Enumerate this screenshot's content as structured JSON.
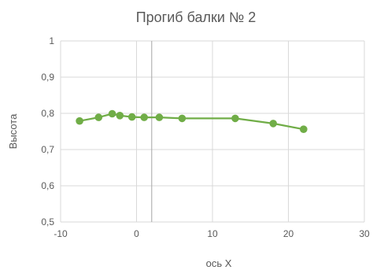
{
  "chart_data": {
    "type": "scatter",
    "title": "Прогиб балки № 2",
    "xlabel": "ось X",
    "ylabel": "Высота",
    "xlim": [
      -10,
      30
    ],
    "ylim": [
      0.5,
      1
    ],
    "x_ticks": [
      -10,
      0,
      10,
      20,
      30
    ],
    "y_ticks": [
      0.5,
      0.6,
      0.7,
      0.8,
      0.9,
      1
    ],
    "x_tick_labels": [
      "-10",
      "0",
      "10",
      "20",
      "30"
    ],
    "y_tick_labels": [
      "0,5",
      "0,6",
      "0,7",
      "0,8",
      "0,9",
      "1"
    ],
    "grid": true,
    "reference_line_x": 2,
    "series": [
      {
        "color": "#70AD47",
        "lines": true,
        "markers": true,
        "x": [
          -7.5,
          -5,
          -3.2,
          -2.2,
          -0.6,
          1,
          3,
          6,
          13,
          18,
          22
        ],
        "y": [
          0.779,
          0.789,
          0.799,
          0.794,
          0.79,
          0.789,
          0.789,
          0.786,
          0.786,
          0.772,
          0.756
        ]
      }
    ]
  }
}
